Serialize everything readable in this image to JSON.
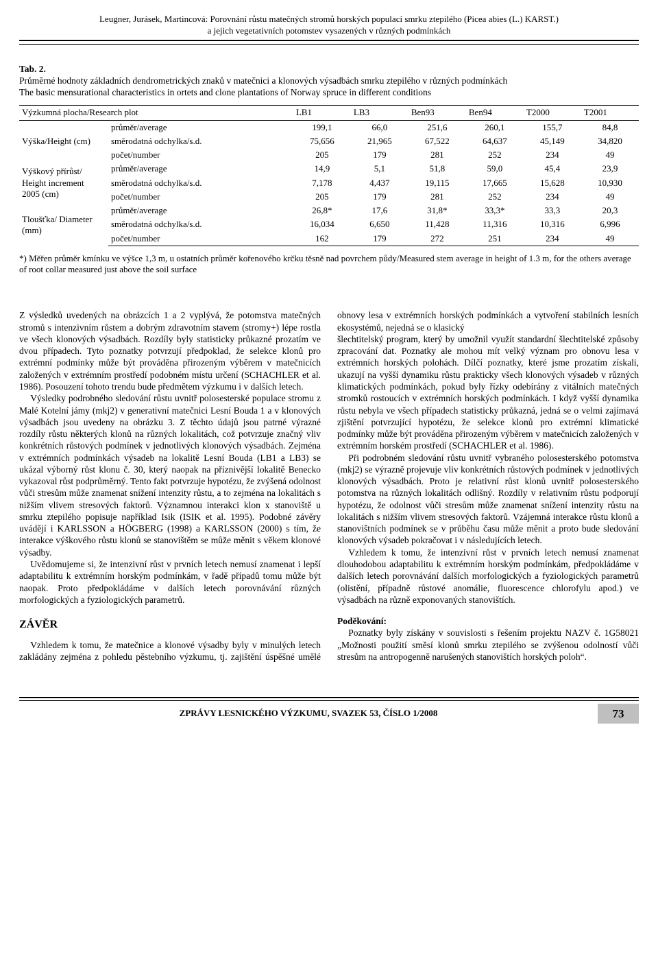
{
  "header": {
    "line1": "Leugner, Jurásek, Martincová: Porovnání růstu matečných stromů horských populací smrku ztepilého (Picea abies (L.) KARST.)",
    "line2": "a jejich vegetativních potomstev vysazených v různých podmínkách"
  },
  "table": {
    "label": "Tab. 2.",
    "caption_cz": "Průměrné hodnoty základních dendrometrických znaků v matečnici a klonových výsadbách smrku ztepilého v různých podmínkách",
    "caption_en": "The basic mensurational characteristics in ortets and clone plantations of Norway spruce in different conditions",
    "col_header_label": "Výzkumná plocha/Research plot",
    "columns": [
      "LB1",
      "LB3",
      "Ben93",
      "Ben94",
      "T2000",
      "T2001"
    ],
    "row_groups": [
      {
        "label": "Výška/Height (cm)",
        "rows": [
          {
            "stat": "průměr/average",
            "vals": [
              "199,1",
              "66,0",
              "251,6",
              "260,1",
              "155,7",
              "84,8"
            ]
          },
          {
            "stat": "směrodatná odchylka/s.d.",
            "vals": [
              "75,656",
              "21,965",
              "67,522",
              "64,637",
              "45,149",
              "34,820"
            ]
          },
          {
            "stat": "počet/number",
            "vals": [
              "205",
              "179",
              "281",
              "252",
              "234",
              "49"
            ]
          }
        ]
      },
      {
        "label": "Výškový přírůst/ Height increment 2005 (cm)",
        "rows": [
          {
            "stat": "průměr/average",
            "vals": [
              "14,9",
              "5,1",
              "51,8",
              "59,0",
              "45,4",
              "23,9"
            ]
          },
          {
            "stat": "směrodatná odchylka/s.d.",
            "vals": [
              "7,178",
              "4,437",
              "19,115",
              "17,665",
              "15,628",
              "10,930"
            ]
          },
          {
            "stat": "počet/number",
            "vals": [
              "205",
              "179",
              "281",
              "252",
              "234",
              "49"
            ]
          }
        ]
      },
      {
        "label": "Tloušťka/ Diameter (mm)",
        "rows": [
          {
            "stat": "průměr/average",
            "vals": [
              "26,8*",
              "17,6",
              "31,8*",
              "33,3*",
              "33,3",
              "20,3"
            ]
          },
          {
            "stat": "směrodatná odchylka/s.d.",
            "vals": [
              "16,034",
              "6,650",
              "11,428",
              "11,316",
              "10,316",
              "6,996"
            ]
          },
          {
            "stat": "počet/number",
            "vals": [
              "162",
              "179",
              "272",
              "251",
              "234",
              "49"
            ]
          }
        ]
      }
    ],
    "footnote": "*) Měřen průměr kmínku ve výšce 1,3 m, u ostatních průměr kořenového krčku těsně nad povrchem půdy/Measured stem average in height of 1.3 m, for the others average of root collar measured just above the soil surface"
  },
  "body": {
    "p1": "Z výsledků uvedených na obrázcích 1 a 2 vyplývá, že potomstva matečných stromů s intenzivním růstem a dobrým zdravotním stavem (stromy+) lépe rostla ve všech klonových výsadbách. Rozdíly byly statisticky průkazné prozatím ve dvou případech. Tyto poznatky potvrzují předpoklad, že selekce klonů pro extrémní podmínky může být prováděna přirozeným výběrem v matečnicích založených v extrémním prostředí podobném místu určení (SCHACHLER et al. 1986). Posouzení tohoto trendu bude předmětem výzkumu i v dalších letech.",
    "p2": "Výsledky podrobného sledování růstu uvnitř polosesterské populace stromu z Malé Kotelní jámy (mkj2) v generativní matečnici Lesní Bouda 1 a v klonových výsadbách jsou uvedeny na obrázku 3. Z těchto údajů jsou patrné výrazné rozdíly růstu některých klonů na různých lokalitách, což potvrzuje značný vliv konkrétních růstových podmínek v jednotlivých klonových výsadbách. Zejména v extrémních podmínkách výsadeb na lokalitě Lesní Bouda (LB1 a LB3) se ukázal výborný růst klonu č. 30, který naopak na příznivější lokalitě Benecko vykazoval růst podprůměrný. Tento fakt potvrzuje hypotézu, že zvýšená odolnost vůči stresům může znamenat snížení intenzity růstu, a to zejména na lokalitách s nižším vlivem stresových faktorů. Významnou interakci klon x stanoviště u smrku ztepilého popisuje například Isik (ISIK et al. 1995). Podobné závěry uvádějí i KARLSSON a HÖGBERG (1998) a KARLSSON (2000) s tím, že interakce výškového růstu klonů se stanovištěm se může měnit s věkem klonové výsadby.",
    "p3": "Uvědomujeme si, že intenzivní růst v prvních letech nemusí znamenat i lepší adaptabilitu k extrémním horským podmínkám, v řadě případů tomu může být naopak. Proto předpokládáme v dalších letech porovnávání různých morfologických a fyziologických parametrů.",
    "h_zaver": "ZÁVĚR",
    "p4": "Vzhledem k tomu, že matečnice a klonové výsadby byly v minulých letech zakládány zejména z pohledu pěstebního výzkumu, tj. zajištění úspěšné umělé obnovy lesa v extrémních horských podmínkách a vytvoření stabilních lesních ekosystémů, nejedná se o klasický",
    "p5": "šlechtitelský program, který by umožnil využít standardní šlechtitelské způsoby zpracování dat. Poznatky ale mohou mít velký význam pro obnovu lesa v extrémních horských polohách. Dílčí poznatky, které jsme prozatím získali, ukazují na vyšší dynamiku růstu prakticky všech klonových výsadeb v různých klimatických podmínkách, pokud byly řízky odebírány z vitálních matečných stromků rostoucích v extrémních horských podmínkách. I když vyšší dynamika růstu nebyla ve všech případech statisticky průkazná, jedná se o velmi zajímavá zjištění potvrzující hypotézu, že selekce klonů pro extrémní klimatické podmínky může být prováděna přirozeným výběrem v matečnicích založených v extrémním horském prostředí (SCHACHLER et al. 1986).",
    "p6": "Při podrobném sledování růstu uvnitř vybraného polosesterského potomstva (mkj2) se výrazně projevuje vliv konkrétních růstových podmínek v jednotlivých klonových výsadbách. Proto je relativní růst klonů uvnitř polosesterského potomstva na různých lokalitách odlišný. Rozdíly v relativním růstu podporují hypotézu, že odolnost vůči stresům může znamenat snížení intenzity růstu na lokalitách s nižším vlivem stresových faktorů. Vzájemná interakce růstu klonů a stanovištních podmínek se v průběhu času může měnit a proto bude sledování klonových výsadeb pokračovat i v následujících letech.",
    "p7": "Vzhledem k tomu, že intenzivní růst v prvních letech nemusí znamenat dlouhodobou adaptabilitu k extrémním horským podmínkám, předpokládáme v dalších letech porovnávání dalších morfologických a fyziologických parametrů (olistění, případně růstové anomálie, fluorescence chlorofylu apod.) ve výsadbách na různě exponovaných stanovištích.",
    "ack_head": "Poděkování:",
    "ack_body": "Poznatky byly získány v souvislosti s řešením projektu NAZV č. 1G58021 „Možnosti použití směsí klonů smrku ztepilého se zvýšenou odolností vůči stresům na antropogenně narušených stanovištích horských poloh“."
  },
  "footer": {
    "journal": "ZPRÁVY LESNICKÉHO VÝZKUMU, SVAZEK 53, ČÍSLO 1/2008",
    "page": "73"
  },
  "colors": {
    "text": "#000000",
    "bg": "#ffffff",
    "pagebox": "#bfbfbf"
  }
}
